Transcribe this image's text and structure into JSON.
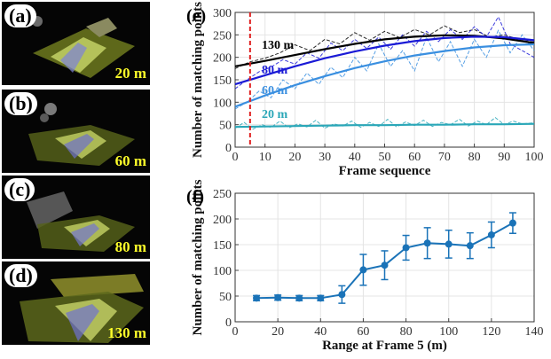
{
  "panels": [
    {
      "label": "(a)",
      "range": "20 m"
    },
    {
      "label": "(b)",
      "range": "60 m"
    },
    {
      "label": "(c)",
      "range": "80 m"
    },
    {
      "label": "(d)",
      "range": "130 m"
    }
  ],
  "colors": {
    "c130": "#000000",
    "c80": "#1a1ad6",
    "c60": "#3a8fe0",
    "c20": "#2aa7b8",
    "marker": "#e02020",
    "errorbar": "#1a73b8"
  },
  "chart_data": [
    {
      "panel": "(e)",
      "type": "line",
      "xlabel": "Frame sequence",
      "ylabel": "Number of matching points",
      "xlim": [
        0,
        100
      ],
      "ylim": [
        0,
        300
      ],
      "xticks": [
        "0",
        "10",
        "20",
        "30",
        "40",
        "50",
        "60",
        "70",
        "80",
        "90",
        "100"
      ],
      "yticks": [
        "0",
        "50",
        "100",
        "150",
        "200",
        "250",
        "300"
      ],
      "grid": true,
      "vline_x": 5,
      "series": [
        {
          "name": "130 m",
          "color": "#000000",
          "fit": [
            [
              0,
              180
            ],
            [
              10,
              192
            ],
            [
              20,
              205
            ],
            [
              30,
              218
            ],
            [
              40,
              230
            ],
            [
              50,
              240
            ],
            [
              60,
              246
            ],
            [
              70,
              249
            ],
            [
              80,
              248
            ],
            [
              90,
              242
            ],
            [
              100,
              232
            ]
          ],
          "raw": [
            [
              0,
              175
            ],
            [
              5,
              190
            ],
            [
              10,
              198
            ],
            [
              15,
              210
            ],
            [
              20,
              228
            ],
            [
              25,
              215
            ],
            [
              30,
              240
            ],
            [
              35,
              230
            ],
            [
              40,
              255
            ],
            [
              45,
              238
            ],
            [
              50,
              258
            ],
            [
              55,
              244
            ],
            [
              60,
              262
            ],
            [
              65,
              250
            ],
            [
              70,
              270
            ],
            [
              75,
              255
            ],
            [
              80,
              262
            ],
            [
              85,
              245
            ],
            [
              90,
              250
            ],
            [
              95,
              240
            ],
            [
              100,
              236
            ]
          ]
        },
        {
          "name": "80 m",
          "color": "#1a1ad6",
          "fit": [
            [
              0,
              140
            ],
            [
              10,
              160
            ],
            [
              20,
              180
            ],
            [
              30,
              198
            ],
            [
              40,
              213
            ],
            [
              50,
              226
            ],
            [
              60,
              236
            ],
            [
              70,
              243
            ],
            [
              80,
              246
            ],
            [
              90,
              245
            ],
            [
              100,
              238
            ]
          ],
          "raw": [
            [
              0,
              130
            ],
            [
              4,
              150
            ],
            [
              8,
              168
            ],
            [
              12,
              178
            ],
            [
              16,
              195
            ],
            [
              20,
              185
            ],
            [
              24,
              210
            ],
            [
              28,
              198
            ],
            [
              32,
              232
            ],
            [
              36,
              215
            ],
            [
              40,
              240
            ],
            [
              44,
              220
            ],
            [
              48,
              245
            ],
            [
              52,
              218
            ],
            [
              56,
              250
            ],
            [
              60,
              225
            ],
            [
              64,
              258
            ],
            [
              68,
              235
            ],
            [
              72,
              262
            ],
            [
              76,
              240
            ],
            [
              80,
              268
            ],
            [
              84,
              245
            ],
            [
              88,
              290
            ],
            [
              92,
              230
            ],
            [
              96,
              215
            ],
            [
              100,
              200
            ]
          ]
        },
        {
          "name": "60 m",
          "color": "#3a8fe0",
          "fit": [
            [
              0,
              90
            ],
            [
              10,
              115
            ],
            [
              20,
              138
            ],
            [
              30,
              158
            ],
            [
              40,
              176
            ],
            [
              50,
              191
            ],
            [
              60,
              204
            ],
            [
              70,
              214
            ],
            [
              80,
              222
            ],
            [
              90,
              227
            ],
            [
              100,
              229
            ]
          ],
          "raw": [
            [
              0,
              85
            ],
            [
              4,
              100
            ],
            [
              8,
              125
            ],
            [
              12,
              110
            ],
            [
              16,
              150
            ],
            [
              20,
              130
            ],
            [
              24,
              165
            ],
            [
              28,
              140
            ],
            [
              32,
              178
            ],
            [
              36,
              155
            ],
            [
              40,
              200
            ],
            [
              44,
              170
            ],
            [
              48,
              230
            ],
            [
              52,
              180
            ],
            [
              56,
              215
            ],
            [
              60,
              170
            ],
            [
              64,
              245
            ],
            [
              68,
              190
            ],
            [
              72,
              235
            ],
            [
              76,
              180
            ],
            [
              80,
              240
            ],
            [
              84,
              200
            ],
            [
              88,
              260
            ],
            [
              92,
              210
            ],
            [
              96,
              250
            ],
            [
              100,
              215
            ]
          ]
        },
        {
          "name": "20 m",
          "color": "#2aa7b8",
          "fit": [
            [
              0,
              45
            ],
            [
              10,
              46
            ],
            [
              20,
              47
            ],
            [
              30,
              48
            ],
            [
              40,
              49
            ],
            [
              50,
              49
            ],
            [
              60,
              50
            ],
            [
              70,
              50
            ],
            [
              80,
              51
            ],
            [
              90,
              51
            ],
            [
              100,
              52
            ]
          ],
          "raw": [
            [
              0,
              42
            ],
            [
              3,
              55
            ],
            [
              6,
              40
            ],
            [
              9,
              50
            ],
            [
              12,
              44
            ],
            [
              15,
              58
            ],
            [
              18,
              43
            ],
            [
              21,
              52
            ],
            [
              24,
              45
            ],
            [
              27,
              60
            ],
            [
              30,
              42
            ],
            [
              33,
              52
            ],
            [
              36,
              47
            ],
            [
              39,
              58
            ],
            [
              42,
              44
            ],
            [
              45,
              55
            ],
            [
              48,
              46
            ],
            [
              51,
              62
            ],
            [
              54,
              45
            ],
            [
              57,
              56
            ],
            [
              60,
              48
            ],
            [
              63,
              60
            ],
            [
              66,
              46
            ],
            [
              69,
              55
            ],
            [
              72,
              50
            ],
            [
              75,
              62
            ],
            [
              78,
              47
            ],
            [
              81,
              58
            ],
            [
              84,
              50
            ],
            [
              87,
              66
            ],
            [
              90,
              50
            ],
            [
              93,
              58
            ],
            [
              96,
              52
            ],
            [
              100,
              54
            ]
          ]
        }
      ]
    },
    {
      "panel": "(f)",
      "type": "line",
      "xlabel": "Range at Frame 5 (m)",
      "ylabel": "Number of matching points",
      "xlim": [
        0,
        140
      ],
      "ylim": [
        0,
        250
      ],
      "xticks": [
        "0",
        "20",
        "40",
        "60",
        "80",
        "100",
        "120",
        "140"
      ],
      "yticks": [
        "0",
        "50",
        "100",
        "150",
        "200",
        "250"
      ],
      "grid": true,
      "points": [
        {
          "x": 10,
          "y": 46,
          "err": 5
        },
        {
          "x": 20,
          "y": 47,
          "err": 5
        },
        {
          "x": 30,
          "y": 46,
          "err": 5
        },
        {
          "x": 40,
          "y": 46,
          "err": 5
        },
        {
          "x": 50,
          "y": 53,
          "err": 17
        },
        {
          "x": 60,
          "y": 101,
          "err": 30
        },
        {
          "x": 70,
          "y": 110,
          "err": 28
        },
        {
          "x": 80,
          "y": 144,
          "err": 24
        },
        {
          "x": 90,
          "y": 153,
          "err": 30
        },
        {
          "x": 100,
          "y": 151,
          "err": 27
        },
        {
          "x": 110,
          "y": 148,
          "err": 25
        },
        {
          "x": 120,
          "y": 169,
          "err": 25
        },
        {
          "x": 130,
          "y": 192,
          "err": 20
        }
      ]
    }
  ]
}
